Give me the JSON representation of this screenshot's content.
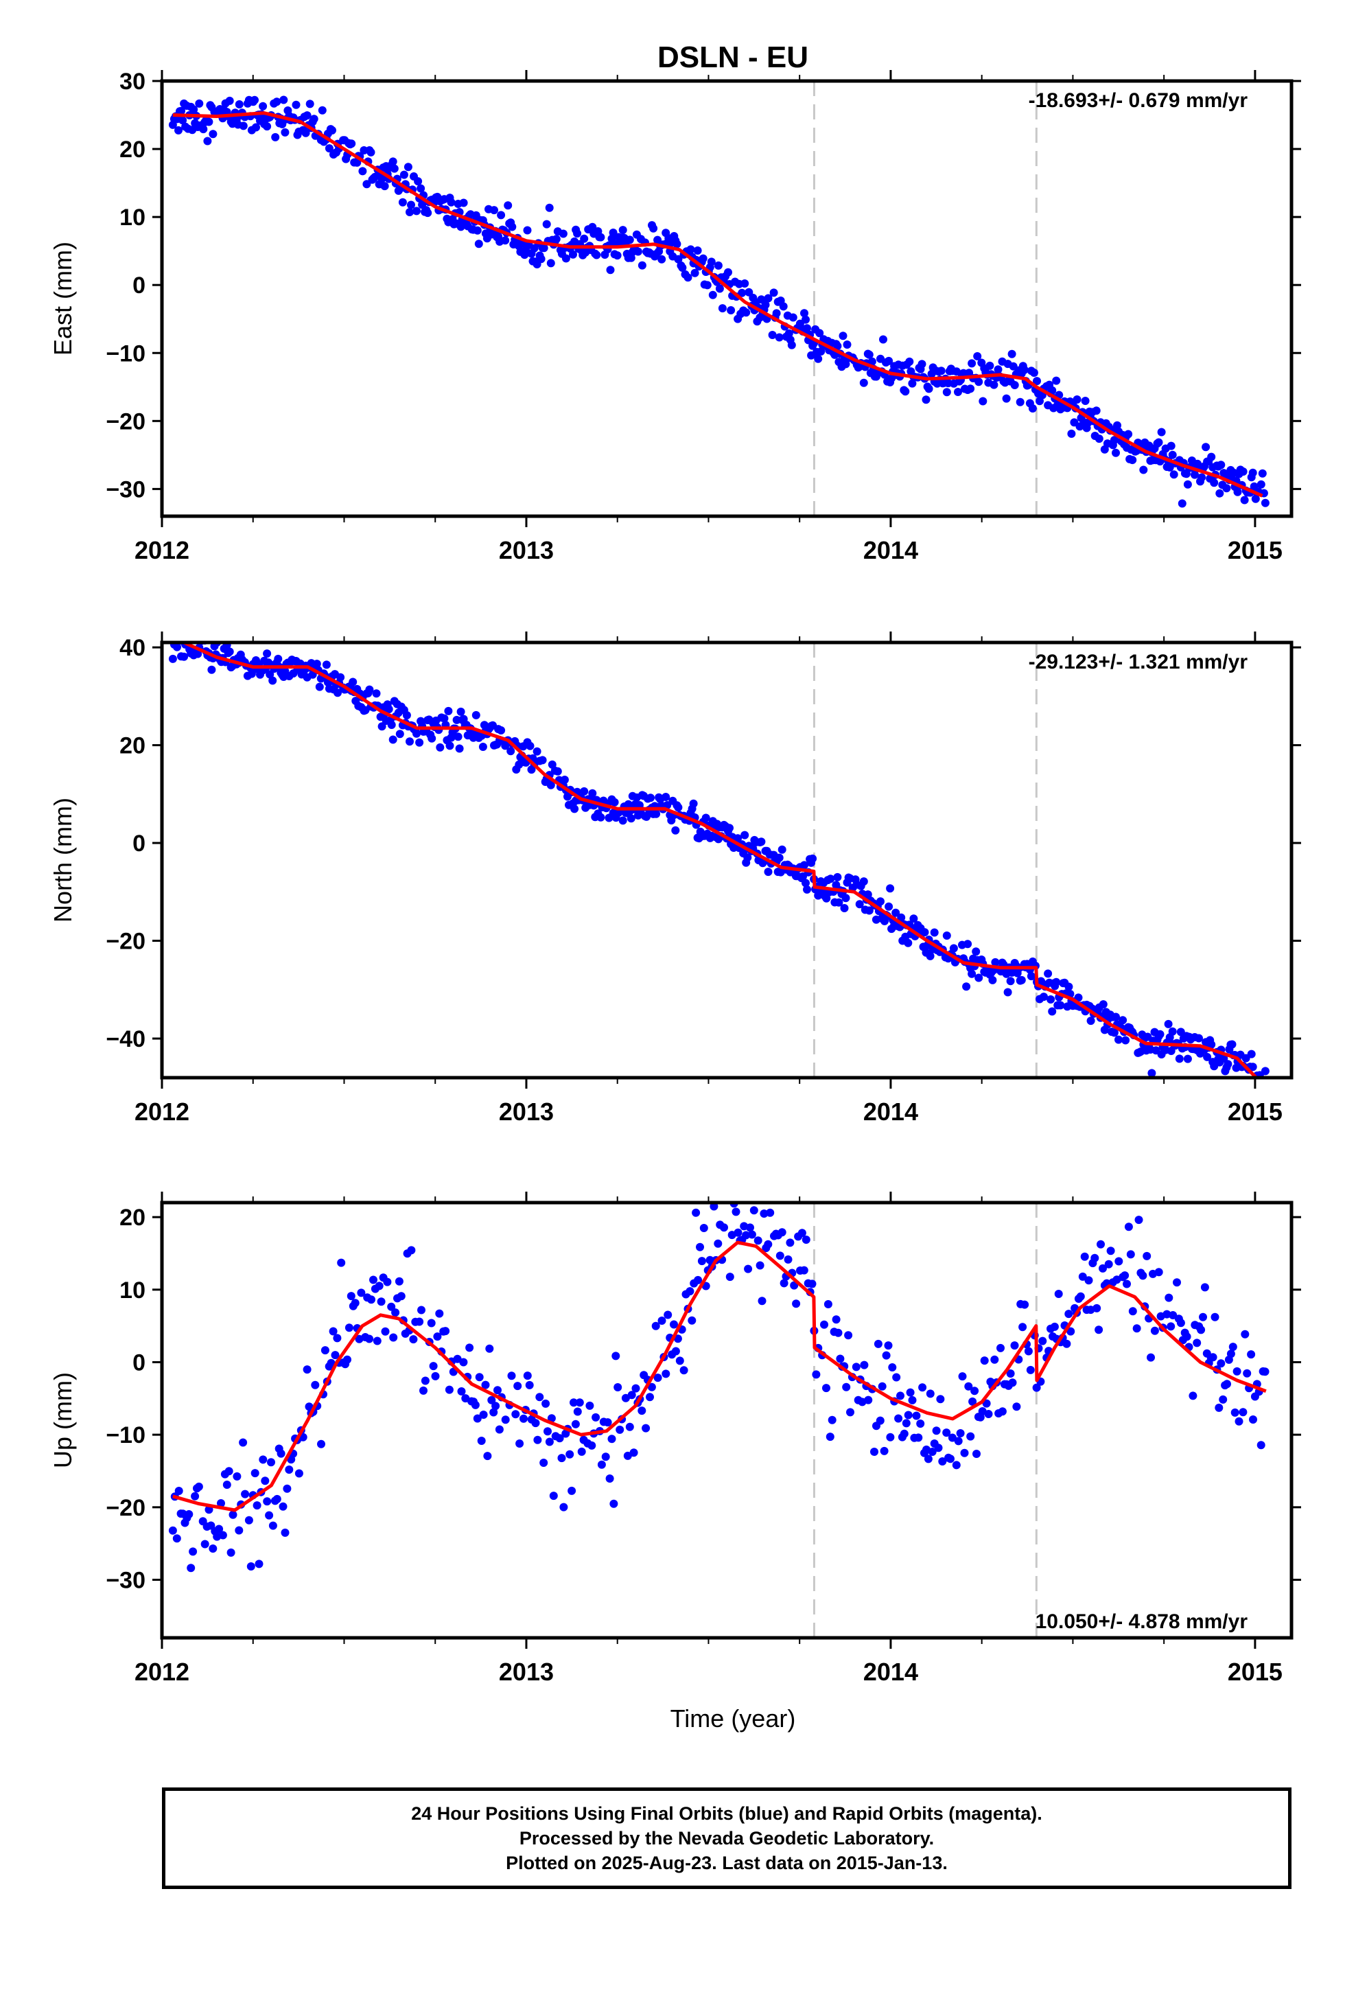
{
  "title": "DSLN - EU",
  "xlabel": "Time (year)",
  "colors": {
    "points": "#0000ff",
    "model": "#ff0000",
    "breaks": "#c8c8c8",
    "frame": "#000000"
  },
  "footer": {
    "line1": "24 Hour Positions Using Final Orbits (blue) and Rapid Orbits (magenta).",
    "line2": "Processed by the Nevada Geodetic Laboratory.",
    "line3": "Plotted on 2025-Aug-23. Last data on 2015-Jan-13."
  },
  "chart_data": [
    {
      "type": "scatter",
      "name": "east",
      "ylabel": "East (mm)",
      "rate_label": "-18.693+/- 0.679 mm/yr",
      "xlim": [
        2012.0,
        2015.1
      ],
      "ylim": [
        -34,
        30
      ],
      "xticks": [
        2012,
        2013,
        2014,
        2015
      ],
      "yticks": [
        -30,
        -20,
        -10,
        0,
        10,
        20,
        30
      ],
      "breaks": [
        2013.79,
        2014.4
      ],
      "model": [
        [
          2012.03,
          25
        ],
        [
          2012.15,
          24.8
        ],
        [
          2012.28,
          25.3
        ],
        [
          2012.38,
          24
        ],
        [
          2012.5,
          20
        ],
        [
          2012.62,
          16
        ],
        [
          2012.75,
          11.5
        ],
        [
          2012.9,
          8.5
        ],
        [
          2013.0,
          6.5
        ],
        [
          2013.12,
          5.6
        ],
        [
          2013.25,
          5.6
        ],
        [
          2013.35,
          6
        ],
        [
          2013.42,
          5.2
        ],
        [
          2013.5,
          2
        ],
        [
          2013.6,
          -2.5
        ],
        [
          2013.7,
          -5.5
        ],
        [
          2013.79,
          -8
        ],
        [
          2013.9,
          -11
        ],
        [
          2014.0,
          -13
        ],
        [
          2014.1,
          -13.8
        ],
        [
          2014.2,
          -13.6
        ],
        [
          2014.3,
          -13.2
        ],
        [
          2014.37,
          -13.8
        ],
        [
          2014.4,
          -15
        ],
        [
          2014.5,
          -18
        ],
        [
          2014.6,
          -21.5
        ],
        [
          2014.7,
          -24.5
        ],
        [
          2014.8,
          -26.5
        ],
        [
          2014.9,
          -28.2
        ],
        [
          2015.02,
          -31
        ]
      ],
      "points": {
        "start": 2012.03,
        "end": 2015.03,
        "step": 0.0038,
        "noise": 1.4
      }
    },
    {
      "type": "scatter",
      "name": "north",
      "ylabel": "North (mm)",
      "rate_label": "-29.123+/- 1.321 mm/yr",
      "xlim": [
        2012.0,
        2015.1
      ],
      "ylim": [
        -48,
        41
      ],
      "xticks": [
        2012,
        2013,
        2014,
        2015
      ],
      "yticks": [
        -40,
        -20,
        0,
        20,
        40
      ],
      "breaks": [
        2013.79,
        2014.4
      ],
      "model": [
        [
          2012.06,
          41
        ],
        [
          2012.15,
          38
        ],
        [
          2012.25,
          36
        ],
        [
          2012.4,
          36
        ],
        [
          2012.5,
          32
        ],
        [
          2012.6,
          27
        ],
        [
          2012.7,
          23.5
        ],
        [
          2012.85,
          23.5
        ],
        [
          2012.95,
          21
        ],
        [
          2013.05,
          14
        ],
        [
          2013.15,
          9
        ],
        [
          2013.25,
          7
        ],
        [
          2013.38,
          7
        ],
        [
          2013.48,
          4
        ],
        [
          2013.6,
          -1
        ],
        [
          2013.7,
          -5
        ],
        [
          2013.789,
          -5.8
        ],
        [
          2013.791,
          -9
        ],
        [
          2013.9,
          -10
        ],
        [
          2014.0,
          -15
        ],
        [
          2014.1,
          -20
        ],
        [
          2014.2,
          -24.5
        ],
        [
          2014.3,
          -25.5
        ],
        [
          2014.399,
          -25.5
        ],
        [
          2014.401,
          -29
        ],
        [
          2014.5,
          -32
        ],
        [
          2014.6,
          -37
        ],
        [
          2014.7,
          -41
        ],
        [
          2014.85,
          -41.5
        ],
        [
          2014.95,
          -44
        ],
        [
          2015.03,
          -50
        ]
      ],
      "points": {
        "start": 2012.03,
        "end": 2015.03,
        "step": 0.0038,
        "noise": 1.6
      }
    },
    {
      "type": "scatter",
      "name": "up",
      "ylabel": "Up (mm)",
      "rate_label": "10.050+/- 4.878 mm/yr",
      "xlim": [
        2012.0,
        2015.1
      ],
      "ylim": [
        -38,
        22
      ],
      "xticks": [
        2012,
        2013,
        2014,
        2015
      ],
      "yticks": [
        -30,
        -20,
        -10,
        0,
        10,
        20
      ],
      "breaks": [
        2013.79,
        2014.4
      ],
      "model": [
        [
          2012.03,
          -18.5
        ],
        [
          2012.1,
          -19.5
        ],
        [
          2012.2,
          -20.4
        ],
        [
          2012.3,
          -17
        ],
        [
          2012.4,
          -8
        ],
        [
          2012.48,
          0
        ],
        [
          2012.55,
          5
        ],
        [
          2012.6,
          6.5
        ],
        [
          2012.65,
          6
        ],
        [
          2012.75,
          2
        ],
        [
          2012.85,
          -3
        ],
        [
          2012.95,
          -5.5
        ],
        [
          2013.05,
          -8
        ],
        [
          2013.15,
          -10
        ],
        [
          2013.22,
          -9.5
        ],
        [
          2013.3,
          -6
        ],
        [
          2013.38,
          1
        ],
        [
          2013.45,
          8
        ],
        [
          2013.52,
          14
        ],
        [
          2013.58,
          16.5
        ],
        [
          2013.63,
          16
        ],
        [
          2013.7,
          13
        ],
        [
          2013.789,
          9
        ],
        [
          2013.791,
          2
        ],
        [
          2013.9,
          -2
        ],
        [
          2014.0,
          -5
        ],
        [
          2014.1,
          -7
        ],
        [
          2014.17,
          -7.8
        ],
        [
          2014.25,
          -5.5
        ],
        [
          2014.32,
          -1
        ],
        [
          2014.399,
          5
        ],
        [
          2014.401,
          -2.5
        ],
        [
          2014.45,
          2
        ],
        [
          2014.52,
          7.5
        ],
        [
          2014.6,
          10.5
        ],
        [
          2014.67,
          9
        ],
        [
          2014.75,
          4.5
        ],
        [
          2014.85,
          0
        ],
        [
          2014.95,
          -2.5
        ],
        [
          2015.03,
          -4
        ]
      ],
      "points": {
        "start": 2012.03,
        "end": 2015.03,
        "step": 0.0055,
        "noise": 3.6
      }
    }
  ]
}
